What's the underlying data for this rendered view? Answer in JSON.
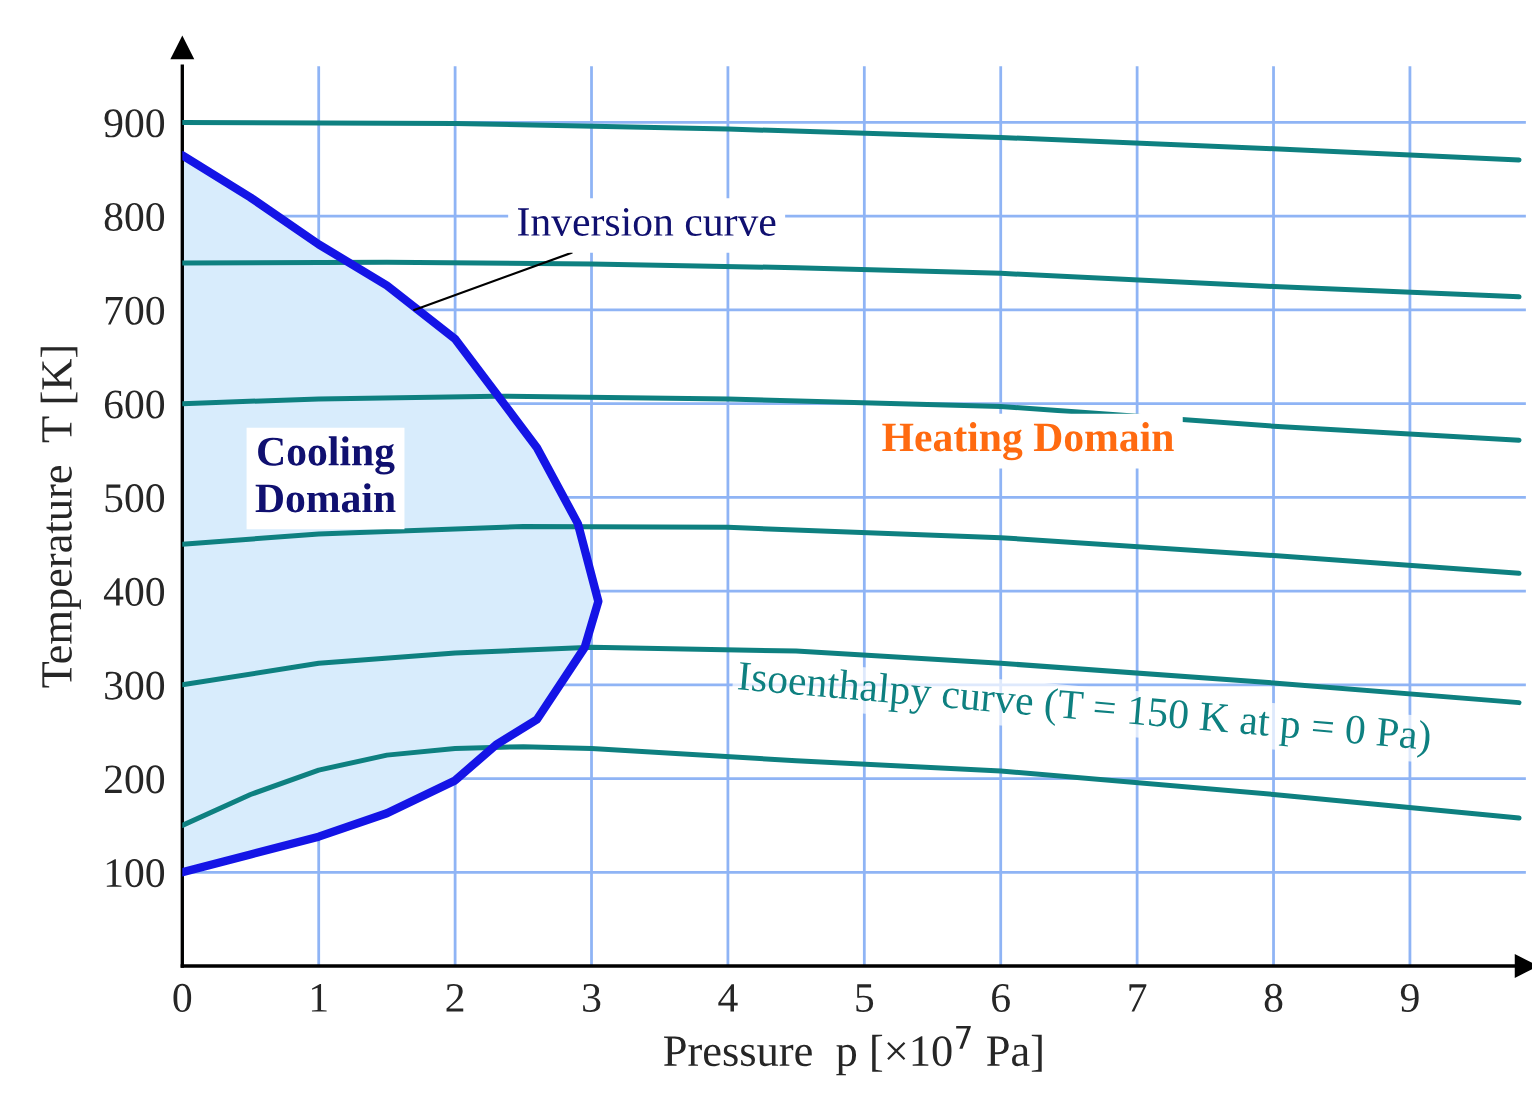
{
  "chart_data": {
    "type": "line",
    "xlabel": "Pressure  p [×10$^{7}$ Pa]",
    "ylabel": "Temperature  T [K]",
    "xlim": [
      0,
      9.85
    ],
    "ylim": [
      0,
      960
    ],
    "xticks": [
      0,
      1,
      2,
      3,
      4,
      5,
      6,
      7,
      8,
      9
    ],
    "yticks": [
      100,
      200,
      300,
      400,
      500,
      600,
      700,
      800,
      900
    ],
    "grid": true,
    "legend": false,
    "marker": "none",
    "line_style": "solid",
    "series": [
      {
        "type": "area",
        "color": "#1414e6",
        "x": [
          0,
          0.5,
          1,
          1.5,
          2,
          2.3,
          2.6,
          2.9,
          3.05,
          2.95,
          2.6,
          2.3,
          2,
          1.5,
          1,
          0.5,
          0
        ],
        "values": [
          865,
          820,
          770,
          726,
          669,
          611,
          553,
          472,
          389,
          340,
          263,
          236,
          198,
          163,
          138,
          119,
          100
        ]
      },
      {
        "color": "#0e8080",
        "x": [
          0,
          2,
          4,
          6,
          8,
          9.8
        ],
        "values": [
          900,
          899,
          893,
          884,
          872,
          860
        ]
      },
      {
        "color": "#0e8080",
        "x": [
          0,
          1.5,
          3,
          4.5,
          6,
          8,
          9.8
        ],
        "values": [
          750,
          751,
          749,
          745,
          739,
          725,
          714
        ]
      },
      {
        "color": "#0e8080",
        "x": [
          0,
          1,
          2.3,
          4,
          6,
          8,
          9.8
        ],
        "values": [
          600,
          605,
          608,
          605,
          597,
          576,
          561
        ]
      },
      {
        "color": "#0e8080",
        "x": [
          0,
          1,
          2.5,
          4,
          6,
          8,
          9.8
        ],
        "values": [
          450,
          461,
          469,
          468,
          457,
          438,
          419
        ]
      },
      {
        "color": "#0e8080",
        "x": [
          0,
          1,
          2,
          3,
          4.5,
          6,
          8,
          9.8
        ],
        "values": [
          300,
          323,
          334,
          340,
          336,
          323,
          302,
          281
        ]
      },
      {
        "color": "#0e8080",
        "x": [
          0,
          0.5,
          1,
          1.5,
          2,
          2.5,
          3,
          4.5,
          6,
          8,
          9.8
        ],
        "values": [
          150,
          183,
          209,
          225,
          232,
          234,
          232,
          219,
          208,
          183,
          158
        ]
      }
    ],
    "annotations": [
      {
        "text": "Inversion curve",
        "x": 1.7,
        "y": 700
      },
      "Cooling\nDomain",
      "Heating Domain",
      {
        "text": "Isoenthalpy curve (T = 150 K at p = 0 Pa)",
        "x": 6.6,
        "y": 200
      }
    ]
  }
}
